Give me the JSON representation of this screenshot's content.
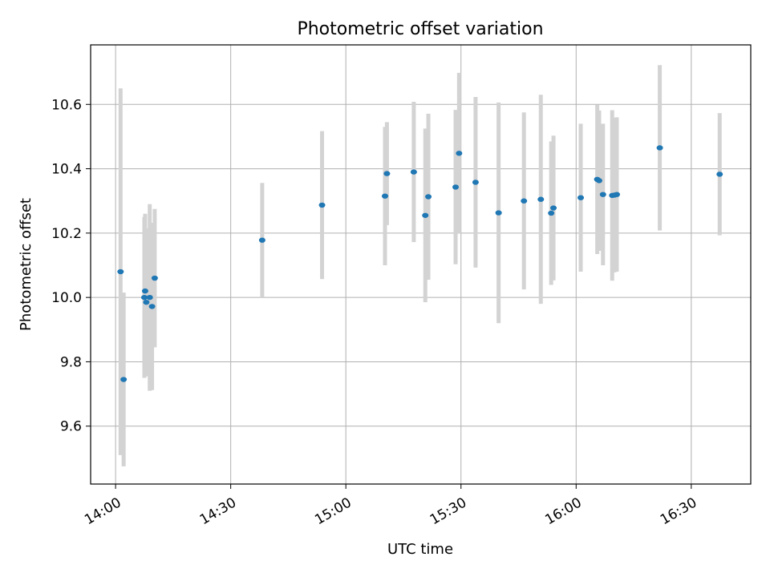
{
  "chart_data": {
    "type": "scatter",
    "title": "Photometric offset variation",
    "xlabel": "UTC time",
    "ylabel": "Photometric offset",
    "grid": true,
    "xlim_minutes": [
      -6.5,
      165.5
    ],
    "ylim": [
      9.42,
      10.785
    ],
    "xticks": [
      {
        "label": "14:00",
        "minutes": 0
      },
      {
        "label": "14:30",
        "minutes": 30
      },
      {
        "label": "15:00",
        "minutes": 60
      },
      {
        "label": "15:30",
        "minutes": 90
      },
      {
        "label": "16:00",
        "minutes": 120
      },
      {
        "label": "16:30",
        "minutes": 150
      }
    ],
    "yticks": [
      {
        "label": "9.6",
        "value": 9.6
      },
      {
        "label": "9.8",
        "value": 9.8
      },
      {
        "label": "10.0",
        "value": 10.0
      },
      {
        "label": "10.2",
        "value": 10.2
      },
      {
        "label": "10.4",
        "value": 10.4
      },
      {
        "label": "10.6",
        "value": 10.6
      }
    ],
    "series": [
      {
        "name": "Photometric offset",
        "marker_color": "#1f77b4",
        "errorbar_color": "#d3d3d3",
        "points": [
          {
            "t": 1.3,
            "y": 10.08,
            "err": 0.57
          },
          {
            "t": 2.1,
            "y": 9.745,
            "err": 0.27
          },
          {
            "t": 7.5,
            "y": 10.0,
            "err": 0.25
          },
          {
            "t": 7.7,
            "y": 10.02,
            "err": 0.24
          },
          {
            "t": 8.0,
            "y": 9.985,
            "err": 0.23
          },
          {
            "t": 8.9,
            "y": 10.0,
            "err": 0.29
          },
          {
            "t": 9.5,
            "y": 9.972,
            "err": 0.26
          },
          {
            "t": 10.2,
            "y": 10.06,
            "err": 0.215
          },
          {
            "t": 38.2,
            "y": 10.178,
            "err": 0.178
          },
          {
            "t": 53.8,
            "y": 10.287,
            "err": 0.23
          },
          {
            "t": 70.2,
            "y": 10.315,
            "err": 0.215
          },
          {
            "t": 70.7,
            "y": 10.385,
            "err": 0.16
          },
          {
            "t": 77.7,
            "y": 10.39,
            "err": 0.218
          },
          {
            "t": 80.7,
            "y": 10.255,
            "err": 0.27
          },
          {
            "t": 81.5,
            "y": 10.313,
            "err": 0.258
          },
          {
            "t": 88.6,
            "y": 10.343,
            "err": 0.24
          },
          {
            "t": 89.5,
            "y": 10.448,
            "err": 0.25
          },
          {
            "t": 93.8,
            "y": 10.358,
            "err": 0.265
          },
          {
            "t": 99.8,
            "y": 10.263,
            "err": 0.343
          },
          {
            "t": 106.4,
            "y": 10.3,
            "err": 0.275
          },
          {
            "t": 110.8,
            "y": 10.305,
            "err": 0.325
          },
          {
            "t": 113.5,
            "y": 10.262,
            "err": 0.223
          },
          {
            "t": 114.1,
            "y": 10.278,
            "err": 0.225
          },
          {
            "t": 121.2,
            "y": 10.31,
            "err": 0.23
          },
          {
            "t": 125.5,
            "y": 10.367,
            "err": 0.232
          },
          {
            "t": 126.0,
            "y": 10.363,
            "err": 0.218
          },
          {
            "t": 127.0,
            "y": 10.32,
            "err": 0.22
          },
          {
            "t": 129.4,
            "y": 10.317,
            "err": 0.265
          },
          {
            "t": 130.0,
            "y": 10.318,
            "err": 0.24
          },
          {
            "t": 130.6,
            "y": 10.32,
            "err": 0.24
          },
          {
            "t": 141.8,
            "y": 10.465,
            "err": 0.257
          },
          {
            "t": 157.4,
            "y": 10.383,
            "err": 0.19
          }
        ]
      }
    ]
  }
}
